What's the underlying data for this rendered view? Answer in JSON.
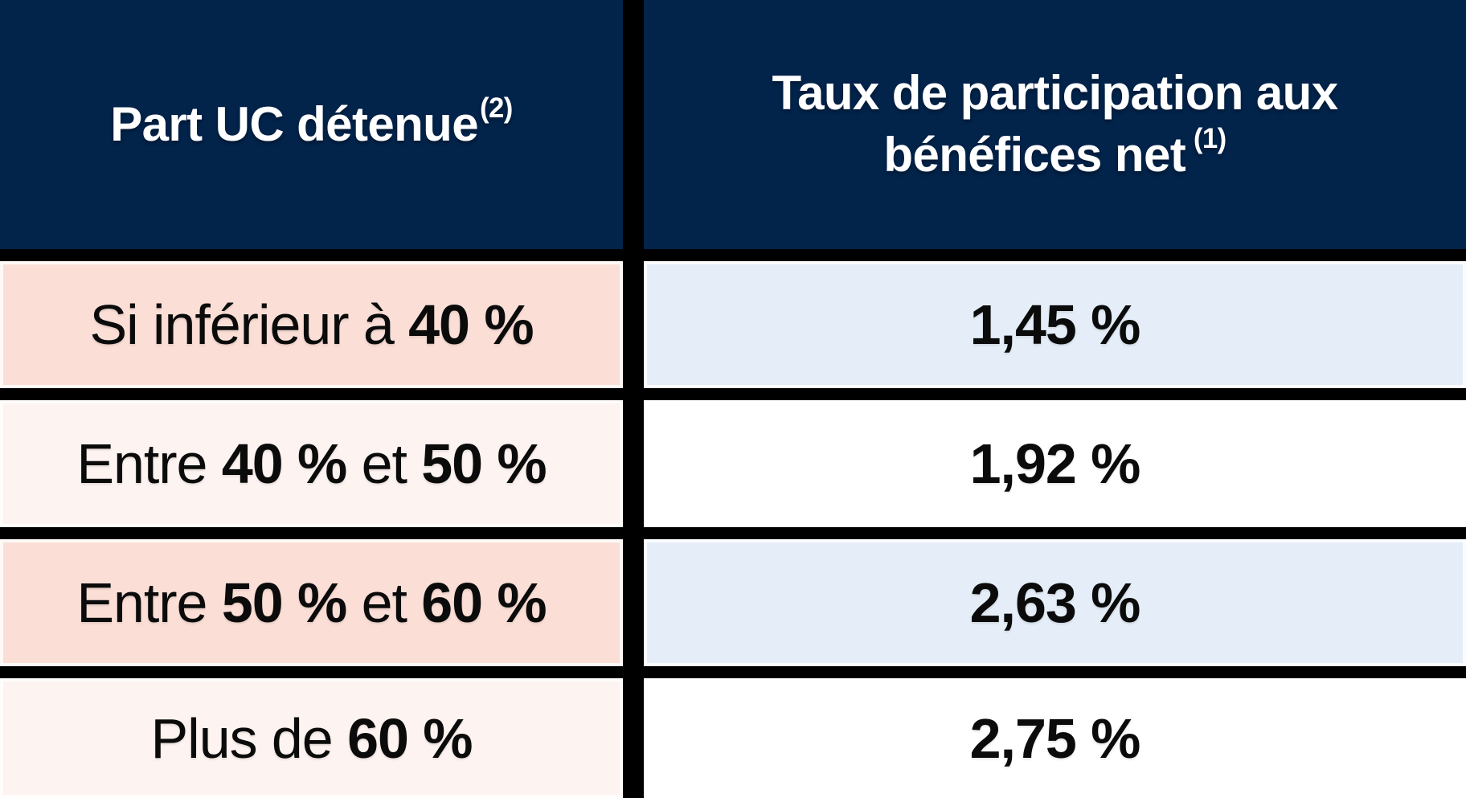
{
  "header": {
    "col1": {
      "label": "Part UC détenue",
      "superscript": "(2)"
    },
    "col2": {
      "label": "Taux de participation aux bénéfices net",
      "superscript": "(1)"
    }
  },
  "rows": [
    {
      "label_segments": [
        {
          "text": "Si inférieur à ",
          "bold": false
        },
        {
          "text": "40 %",
          "bold": true
        }
      ],
      "value": "1,45 %"
    },
    {
      "label_segments": [
        {
          "text": "Entre ",
          "bold": false
        },
        {
          "text": "40 %",
          "bold": true
        },
        {
          "text": " et ",
          "bold": false
        },
        {
          "text": "50 %",
          "bold": true
        }
      ],
      "value": "1,92 %"
    },
    {
      "label_segments": [
        {
          "text": "Entre ",
          "bold": false
        },
        {
          "text": "50 %",
          "bold": true
        },
        {
          "text": " et ",
          "bold": false
        },
        {
          "text": "60 %",
          "bold": true
        }
      ],
      "value": "2,63 %"
    },
    {
      "label_segments": [
        {
          "text": "Plus de ",
          "bold": false
        },
        {
          "text": "60 %",
          "bold": true
        }
      ],
      "value": "2,75 %"
    }
  ],
  "colors": {
    "navy": "#02234a",
    "divider": "#000000",
    "pink": "#fbdfd7",
    "pale_pink": "#fdf3f0",
    "blue": "#e5eef8",
    "white": "#ffffff",
    "header_text": "#ffffff",
    "body_text": "#0b0b0b"
  },
  "chart_data": {
    "type": "table",
    "title": "",
    "columns": [
      "Part UC détenue (2)",
      "Taux de participation aux bénéfices net (1)"
    ],
    "rows": [
      [
        "Si inférieur à 40 %",
        "1,45 %"
      ],
      [
        "Entre 40 % et 50 %",
        "1,92 %"
      ],
      [
        "Entre 50 % et 60 %",
        "2,63 %"
      ],
      [
        "Plus de 60 %",
        "2,75 %"
      ]
    ],
    "layout_hints": {
      "header_background": "#02234a",
      "row_label_backgrounds": [
        "#fbdfd7",
        "#fdf3f0",
        "#fbdfd7",
        "#fdf3f0"
      ],
      "row_value_backgrounds": [
        "#e5eef8",
        "#ffffff",
        "#e5eef8",
        "#ffffff"
      ],
      "grid_lines": "thick black dividers",
      "bottom_row_cropped": true
    }
  }
}
